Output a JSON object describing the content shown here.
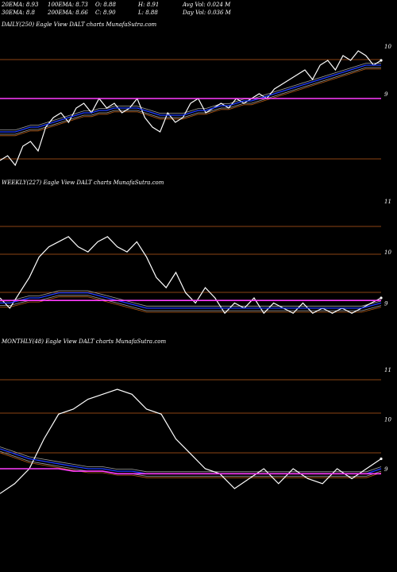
{
  "header": {
    "row1": [
      "20EMA: 8.93",
      "100EMA: 8.73",
      "O: 8.88",
      "H: 8.91",
      "Avg Vol: 0.024  M"
    ],
    "row2": [
      "30EMA: 8.8",
      "200EMA: 8.66",
      "C: 8.90",
      "L: 8.88",
      "Day Vol: 0.036  M"
    ]
  },
  "colors": {
    "background": "#000000",
    "price": "#ffffff",
    "ema_blue": "#1e3cff",
    "ema_magenta": "#ff3cff",
    "ema_orange": "#b45a14",
    "ema_gray": "#a0a0a0",
    "gridline": "#8b4513"
  },
  "chart_data": [
    {
      "type": "line",
      "title": "DAILY(250) Eagle  View  DALT charts MunafaSutra.com",
      "ticks": [
        "10",
        "9"
      ],
      "series": [
        {
          "values": [
            7.6,
            7.7,
            7.5,
            7.9,
            8.0,
            7.8,
            8.3,
            8.5,
            8.6,
            8.4,
            8.7,
            8.8,
            8.6,
            8.9,
            8.7,
            8.8,
            8.6,
            8.7,
            8.9,
            8.5,
            8.3,
            8.2,
            8.6,
            8.4,
            8.5,
            8.8,
            8.9,
            8.6,
            8.7,
            8.8,
            8.7,
            8.9,
            8.8,
            8.9,
            9.0,
            8.9,
            9.1,
            9.2,
            9.3,
            9.4,
            9.5,
            9.3,
            9.6,
            9.7,
            9.5,
            9.8,
            9.7,
            9.9,
            9.8,
            9.6,
            9.7
          ]
        },
        {
          "values": [
            8.2,
            8.2,
            8.2,
            8.25,
            8.3,
            8.3,
            8.35,
            8.4,
            8.45,
            8.5,
            8.55,
            8.6,
            8.6,
            8.65,
            8.65,
            8.7,
            8.7,
            8.7,
            8.7,
            8.65,
            8.6,
            8.55,
            8.55,
            8.55,
            8.55,
            8.6,
            8.65,
            8.65,
            8.7,
            8.75,
            8.75,
            8.8,
            8.85,
            8.85,
            8.9,
            8.95,
            9.0,
            9.05,
            9.1,
            9.15,
            9.2,
            9.25,
            9.3,
            9.35,
            9.4,
            9.45,
            9.5,
            9.55,
            9.6,
            9.6,
            9.6
          ]
        },
        {
          "values": [
            8.9,
            8.9,
            8.9,
            8.9,
            8.9,
            8.9,
            8.9,
            8.9,
            8.9,
            8.9,
            8.9,
            8.9,
            8.9,
            8.9,
            8.9,
            8.9,
            8.9,
            8.9,
            8.9,
            8.9,
            8.9,
            8.9,
            8.9,
            8.9,
            8.9,
            8.9,
            8.9,
            8.9,
            8.9,
            8.9,
            8.9,
            8.9,
            8.9,
            8.9,
            8.9,
            8.9,
            8.9,
            8.9,
            8.9,
            8.9,
            8.9,
            8.9,
            8.9,
            8.9,
            8.9,
            8.9,
            8.9,
            8.9,
            8.9,
            8.9,
            8.9
          ]
        }
      ]
    },
    {
      "type": "line",
      "title": "WEEKLY(227) Eagle  View  DALT charts MunafaSutra.com",
      "ticks": [
        "11",
        "10",
        "9"
      ],
      "series": [
        {
          "values": [
            9.1,
            8.9,
            9.2,
            9.5,
            9.9,
            10.1,
            10.2,
            10.3,
            10.1,
            10.0,
            10.2,
            10.3,
            10.1,
            10.0,
            10.2,
            9.9,
            9.5,
            9.3,
            9.6,
            9.2,
            9.0,
            9.3,
            9.1,
            8.8,
            9.0,
            8.9,
            9.1,
            8.8,
            9.0,
            8.9,
            8.8,
            9.0,
            8.8,
            8.9,
            8.8,
            8.9,
            8.8,
            8.9,
            9.0,
            9.1
          ]
        },
        {
          "values": [
            9.0,
            9.0,
            9.05,
            9.1,
            9.1,
            9.15,
            9.2,
            9.2,
            9.2,
            9.2,
            9.15,
            9.1,
            9.05,
            9.0,
            8.95,
            8.9,
            8.9,
            8.9,
            8.9,
            8.9,
            8.9,
            8.9,
            8.9,
            8.9,
            8.9,
            8.9,
            8.9,
            8.9,
            8.9,
            8.9,
            8.9,
            8.9,
            8.9,
            8.9,
            8.9,
            8.9,
            8.9,
            8.9,
            8.95,
            9.0
          ]
        },
        {
          "values": [
            9.05,
            9.05,
            9.05,
            9.05,
            9.05,
            9.05,
            9.05,
            9.05,
            9.05,
            9.05,
            9.05,
            9.05,
            9.05,
            9.05,
            9.05,
            9.05,
            9.05,
            9.05,
            9.05,
            9.05,
            9.05,
            9.05,
            9.05,
            9.05,
            9.05,
            9.05,
            9.05,
            9.05,
            9.05,
            9.05,
            9.05,
            9.05,
            9.05,
            9.05,
            9.05,
            9.05,
            9.05,
            9.05,
            9.05,
            9.05
          ]
        }
      ]
    },
    {
      "type": "line",
      "title": "MONTHLY(48) Eagle  View  DALT charts MunafaSutra.com",
      "ticks": [
        "11",
        "10",
        "9"
      ],
      "series": [
        {
          "values": [
            8.5,
            8.7,
            9.0,
            9.6,
            10.1,
            10.2,
            10.4,
            10.5,
            10.6,
            10.5,
            10.2,
            10.1,
            9.6,
            9.3,
            9.0,
            8.9,
            8.6,
            8.8,
            9.0,
            8.7,
            9.0,
            8.8,
            8.7,
            9.0,
            8.8,
            9.0,
            9.2
          ]
        },
        {
          "values": [
            9.4,
            9.3,
            9.2,
            9.15,
            9.1,
            9.05,
            9.0,
            9.0,
            8.95,
            8.95,
            8.9,
            8.9,
            8.9,
            8.9,
            8.9,
            8.9,
            8.9,
            8.9,
            8.9,
            8.9,
            8.9,
            8.9,
            8.9,
            8.9,
            8.9,
            8.9,
            9.0
          ]
        },
        {
          "values": [
            9.0,
            9.0,
            9.0,
            9.0,
            9.0,
            8.95,
            8.95,
            8.95,
            8.9,
            8.9,
            8.9,
            8.9,
            8.9,
            8.9,
            8.9,
            8.9,
            8.9,
            8.9,
            8.9,
            8.9,
            8.9,
            8.9,
            8.9,
            8.9,
            8.9,
            8.9,
            8.9
          ]
        }
      ]
    }
  ]
}
